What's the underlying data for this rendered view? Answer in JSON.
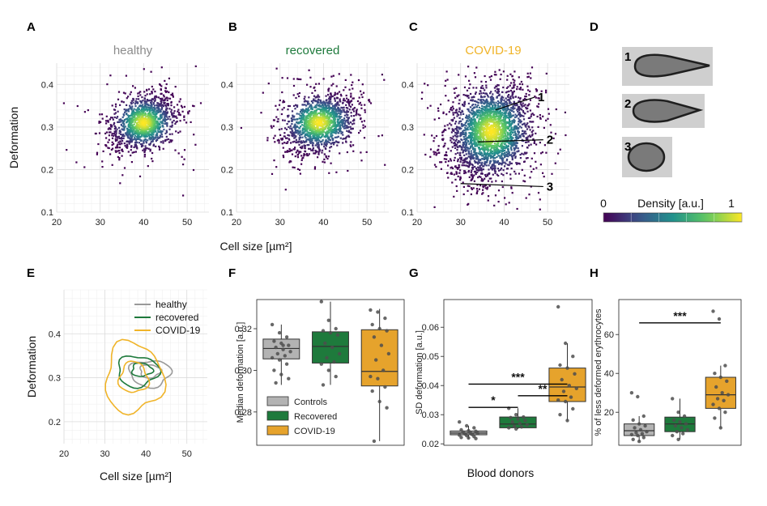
{
  "figure": {
    "shared_xlabel": "Cell size [µm²]",
    "shared_bottom_label": "Blood donors",
    "colorbar": {
      "title": "Density [a.u.]",
      "min_label": "0",
      "max_label": "1",
      "colormap": "viridis"
    },
    "cell_images": [
      "1",
      "2",
      "3"
    ]
  },
  "chart_data": [
    {
      "panel": "A",
      "type": "scatter",
      "title": "healthy",
      "title_color": "#8c8c8c",
      "ylabel": "Deformation",
      "xlim": [
        20,
        55
      ],
      "ylim": [
        0.1,
        0.45
      ],
      "xticks": [
        "20",
        "30",
        "40",
        "50"
      ],
      "yticks": [
        "0.1",
        "0.2",
        "0.3",
        "0.4"
      ],
      "center": [
        40,
        0.31
      ],
      "spread": [
        3.5,
        0.03
      ],
      "n_points": 1400,
      "density_coloring": true
    },
    {
      "panel": "B",
      "type": "scatter",
      "title": "recovered",
      "title_color": "#1e7a3c",
      "ylabel": "",
      "xlim": [
        20,
        55
      ],
      "ylim": [
        0.1,
        0.45
      ],
      "xticks": [
        "20",
        "30",
        "40",
        "50"
      ],
      "yticks": [
        "0.1",
        "0.2",
        "0.3",
        "0.4"
      ],
      "center": [
        39,
        0.31
      ],
      "spread": [
        4,
        0.032
      ],
      "n_points": 1500,
      "density_coloring": true
    },
    {
      "panel": "C",
      "type": "scatter",
      "title": "COVID-19",
      "title_color": "#f0b429",
      "ylabel": "",
      "xlim": [
        20,
        55
      ],
      "ylim": [
        0.1,
        0.45
      ],
      "xticks": [
        "20",
        "30",
        "40",
        "50"
      ],
      "yticks": [
        "0.1",
        "0.2",
        "0.3",
        "0.4"
      ],
      "center": [
        37,
        0.29
      ],
      "spread": [
        4.5,
        0.05
      ],
      "n_points": 2600,
      "density_coloring": true,
      "annotations": [
        {
          "label": "1",
          "from": [
            38,
            0.34
          ],
          "to": [
            47,
            0.37
          ]
        },
        {
          "label": "2",
          "from": [
            34,
            0.265
          ],
          "to": [
            49,
            0.27
          ]
        },
        {
          "label": "3",
          "from": [
            30,
            0.167
          ],
          "to": [
            49,
            0.16
          ]
        }
      ]
    },
    {
      "panel": "E",
      "type": "line",
      "subtype": "contour",
      "ylabel": "Deformation",
      "xlim": [
        20,
        55
      ],
      "ylim": [
        0.15,
        0.5
      ],
      "xticks": [
        "20",
        "30",
        "40",
        "50"
      ],
      "yticks": [
        "0.2",
        "0.3",
        "0.4"
      ],
      "legend_position": "top-right",
      "series": [
        {
          "name": "healthy",
          "color": "#999999",
          "contours": [
            {
              "cx": 41,
              "cy": 0.31,
              "rx": 5,
              "ry": 0.03
            },
            {
              "cx": 41,
              "cy": 0.315,
              "rx": 2.5,
              "ry": 0.015
            }
          ]
        },
        {
          "name": "recovered",
          "color": "#1e7a3c",
          "contours": [
            {
              "cx": 38,
              "cy": 0.315,
              "rx": 5,
              "ry": 0.035
            },
            {
              "cx": 39,
              "cy": 0.318,
              "rx": 2.5,
              "ry": 0.015
            }
          ]
        },
        {
          "name": "COVID-19",
          "color": "#f0b429",
          "contours": [
            {
              "cx": 37,
              "cy": 0.3,
              "rx": 7,
              "ry": 0.08
            },
            {
              "cx": 37,
              "cy": 0.3,
              "rx": 3.5,
              "ry": 0.035
            }
          ]
        }
      ]
    },
    {
      "panel": "F",
      "type": "box",
      "ylabel": "Median  deformation [a.u.]",
      "ylim": [
        0.264,
        0.334
      ],
      "yticks": [
        "0.28",
        "0.30",
        "0.32"
      ],
      "categories": [
        "Controls",
        "Recovered",
        "COVID-19"
      ],
      "colors": [
        "#b3b3b3",
        "#1e7a3c",
        "#e6a32c"
      ],
      "boxes": [
        {
          "whislo": 0.293,
          "q1": 0.3055,
          "med": 0.3105,
          "q3": 0.315,
          "whishi": 0.322
        },
        {
          "whislo": 0.293,
          "q1": 0.3035,
          "med": 0.3115,
          "q3": 0.3185,
          "whishi": 0.333
        },
        {
          "whislo": 0.266,
          "q1": 0.2925,
          "med": 0.2995,
          "q3": 0.3195,
          "whishi": 0.3295
        }
      ],
      "points": [
        [
          0.322,
          0.318,
          0.316,
          0.314,
          0.313,
          0.312,
          0.311,
          0.31,
          0.309,
          0.308,
          0.307,
          0.306,
          0.305,
          0.303,
          0.3,
          0.298,
          0.296,
          0.294,
          0.312
        ],
        [
          0.333,
          0.324,
          0.32,
          0.319,
          0.318,
          0.317,
          0.313,
          0.311,
          0.308,
          0.306,
          0.304,
          0.303,
          0.3,
          0.297,
          0.293
        ],
        [
          0.329,
          0.328,
          0.325,
          0.322,
          0.32,
          0.319,
          0.316,
          0.312,
          0.308,
          0.305,
          0.3,
          0.297,
          0.296,
          0.292,
          0.29,
          0.285,
          0.282,
          0.266
        ]
      ],
      "legend": [
        "Controls",
        "Recovered",
        "COVID-19"
      ]
    },
    {
      "panel": "G",
      "type": "box",
      "ylabel": "SD deformation [a.u.]",
      "ylim": [
        0.0195,
        0.0695
      ],
      "yticks": [
        "0.02",
        "0.03",
        "0.04",
        "0.05",
        "0.06"
      ],
      "categories": [
        "Controls",
        "Recovered",
        "COVID-19"
      ],
      "colors": [
        "#b3b3b3",
        "#1e7a3c",
        "#e6a32c"
      ],
      "boxes": [
        {
          "whislo": 0.0218,
          "q1": 0.0231,
          "med": 0.0237,
          "q3": 0.0244,
          "whishi": 0.0262
        },
        {
          "whislo": 0.0251,
          "q1": 0.0255,
          "med": 0.0268,
          "q3": 0.0292,
          "whishi": 0.0322
        },
        {
          "whislo": 0.028,
          "q1": 0.0345,
          "med": 0.0395,
          "q3": 0.046,
          "whishi": 0.0545
        }
      ],
      "points": [
        [
          0.0275,
          0.0262,
          0.0255,
          0.0248,
          0.0245,
          0.0243,
          0.024,
          0.0238,
          0.0236,
          0.0234,
          0.0232,
          0.023,
          0.0228,
          0.0225,
          0.0222,
          0.022,
          0.0218
        ],
        [
          0.0322,
          0.03,
          0.0292,
          0.029,
          0.0285,
          0.028,
          0.0275,
          0.027,
          0.0265,
          0.026,
          0.0258,
          0.0255,
          0.0251
        ],
        [
          0.067,
          0.0545,
          0.05,
          0.047,
          0.046,
          0.044,
          0.042,
          0.04,
          0.039,
          0.038,
          0.036,
          0.035,
          0.0345,
          0.032,
          0.03,
          0.028
        ]
      ],
      "significance": [
        {
          "from": 0,
          "to": 1,
          "label": "*",
          "y": 0.0325
        },
        {
          "from": 1,
          "to": 2,
          "label": "**",
          "y": 0.0365
        },
        {
          "from": 0,
          "to": 2,
          "label": "***",
          "y": 0.0405
        }
      ]
    },
    {
      "panel": "H",
      "type": "box",
      "ylabel": "% of less deformed erythrocytes",
      "ylim": [
        3,
        78
      ],
      "yticks": [
        "20",
        "40",
        "60"
      ],
      "categories": [
        "Controls",
        "Recovered",
        "COVID-19"
      ],
      "colors": [
        "#b3b3b3",
        "#1e7a3c",
        "#e6a32c"
      ],
      "boxes": [
        {
          "whislo": 5,
          "q1": 8,
          "med": 10.5,
          "q3": 14,
          "whishi": 18
        },
        {
          "whislo": 6,
          "q1": 10,
          "med": 14,
          "q3": 17.5,
          "whishi": 27
        },
        {
          "whislo": 12,
          "q1": 22,
          "med": 29,
          "q3": 38,
          "whishi": 44
        }
      ],
      "points": [
        [
          30,
          28,
          18,
          16,
          14,
          13,
          12,
          11,
          10,
          9.5,
          9,
          8.5,
          8,
          7,
          6,
          5
        ],
        [
          27,
          20,
          18,
          16,
          15,
          14,
          13,
          12,
          11,
          10,
          9,
          8,
          6
        ],
        [
          72,
          68,
          44,
          40,
          38,
          36,
          33,
          30,
          29,
          27,
          26,
          24,
          22,
          20,
          17,
          12
        ]
      ],
      "significance": [
        {
          "from": 0,
          "to": 2,
          "label": "***",
          "y": 66
        }
      ]
    }
  ]
}
